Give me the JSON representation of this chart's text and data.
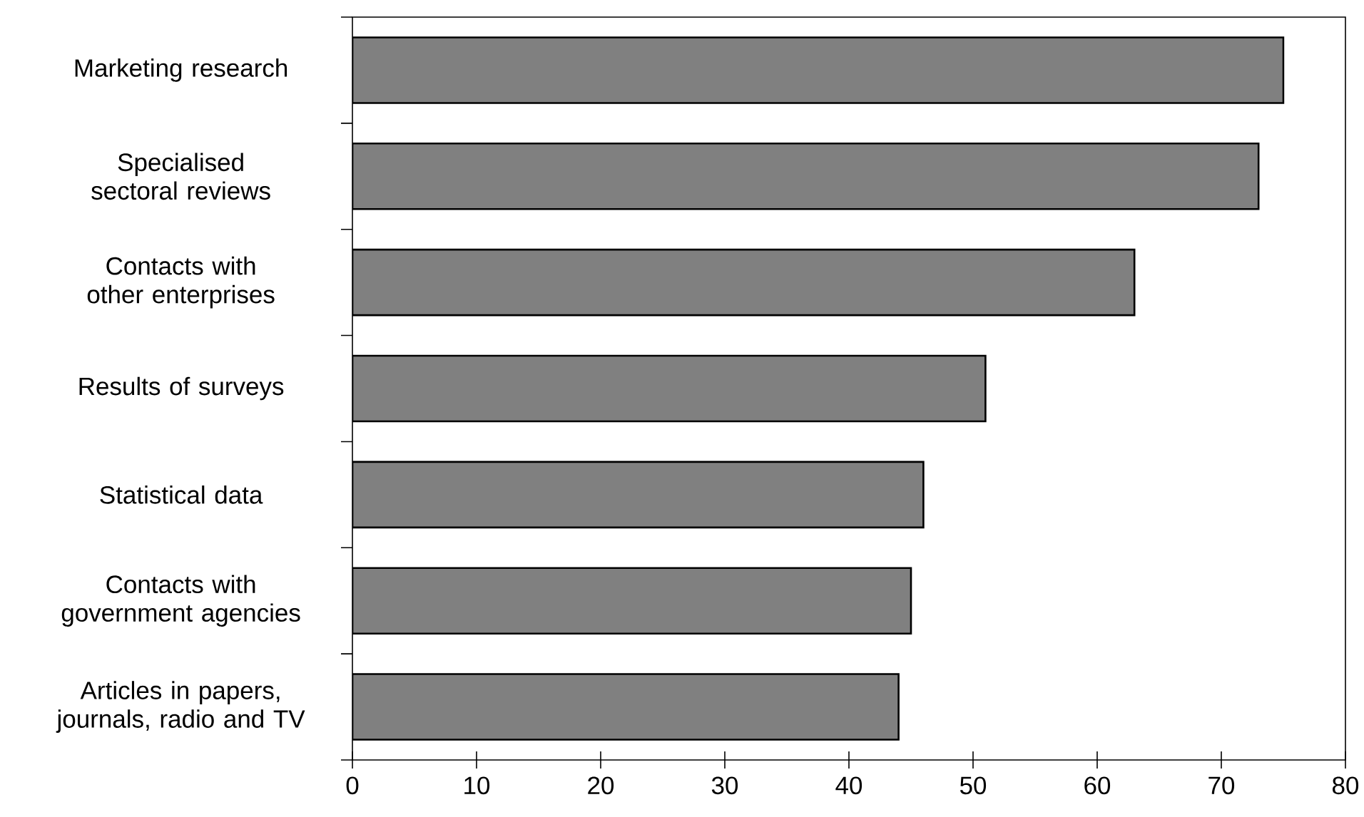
{
  "chart_data": {
    "type": "bar",
    "orientation": "horizontal",
    "categories": [
      "Marketing research",
      "Specialised sectoral reviews",
      "Contacts with other enterprises",
      "Results of surveys",
      "Statistical data",
      "Contacts with government agencies",
      "Articles in papers, journals, radio and TV"
    ],
    "values": [
      75,
      73,
      63,
      51,
      46,
      45,
      44
    ],
    "color": "#808080",
    "xlim": [
      0,
      80
    ],
    "xticks": [
      0,
      10,
      20,
      30,
      40,
      50,
      60,
      70,
      80
    ],
    "grid": false
  }
}
